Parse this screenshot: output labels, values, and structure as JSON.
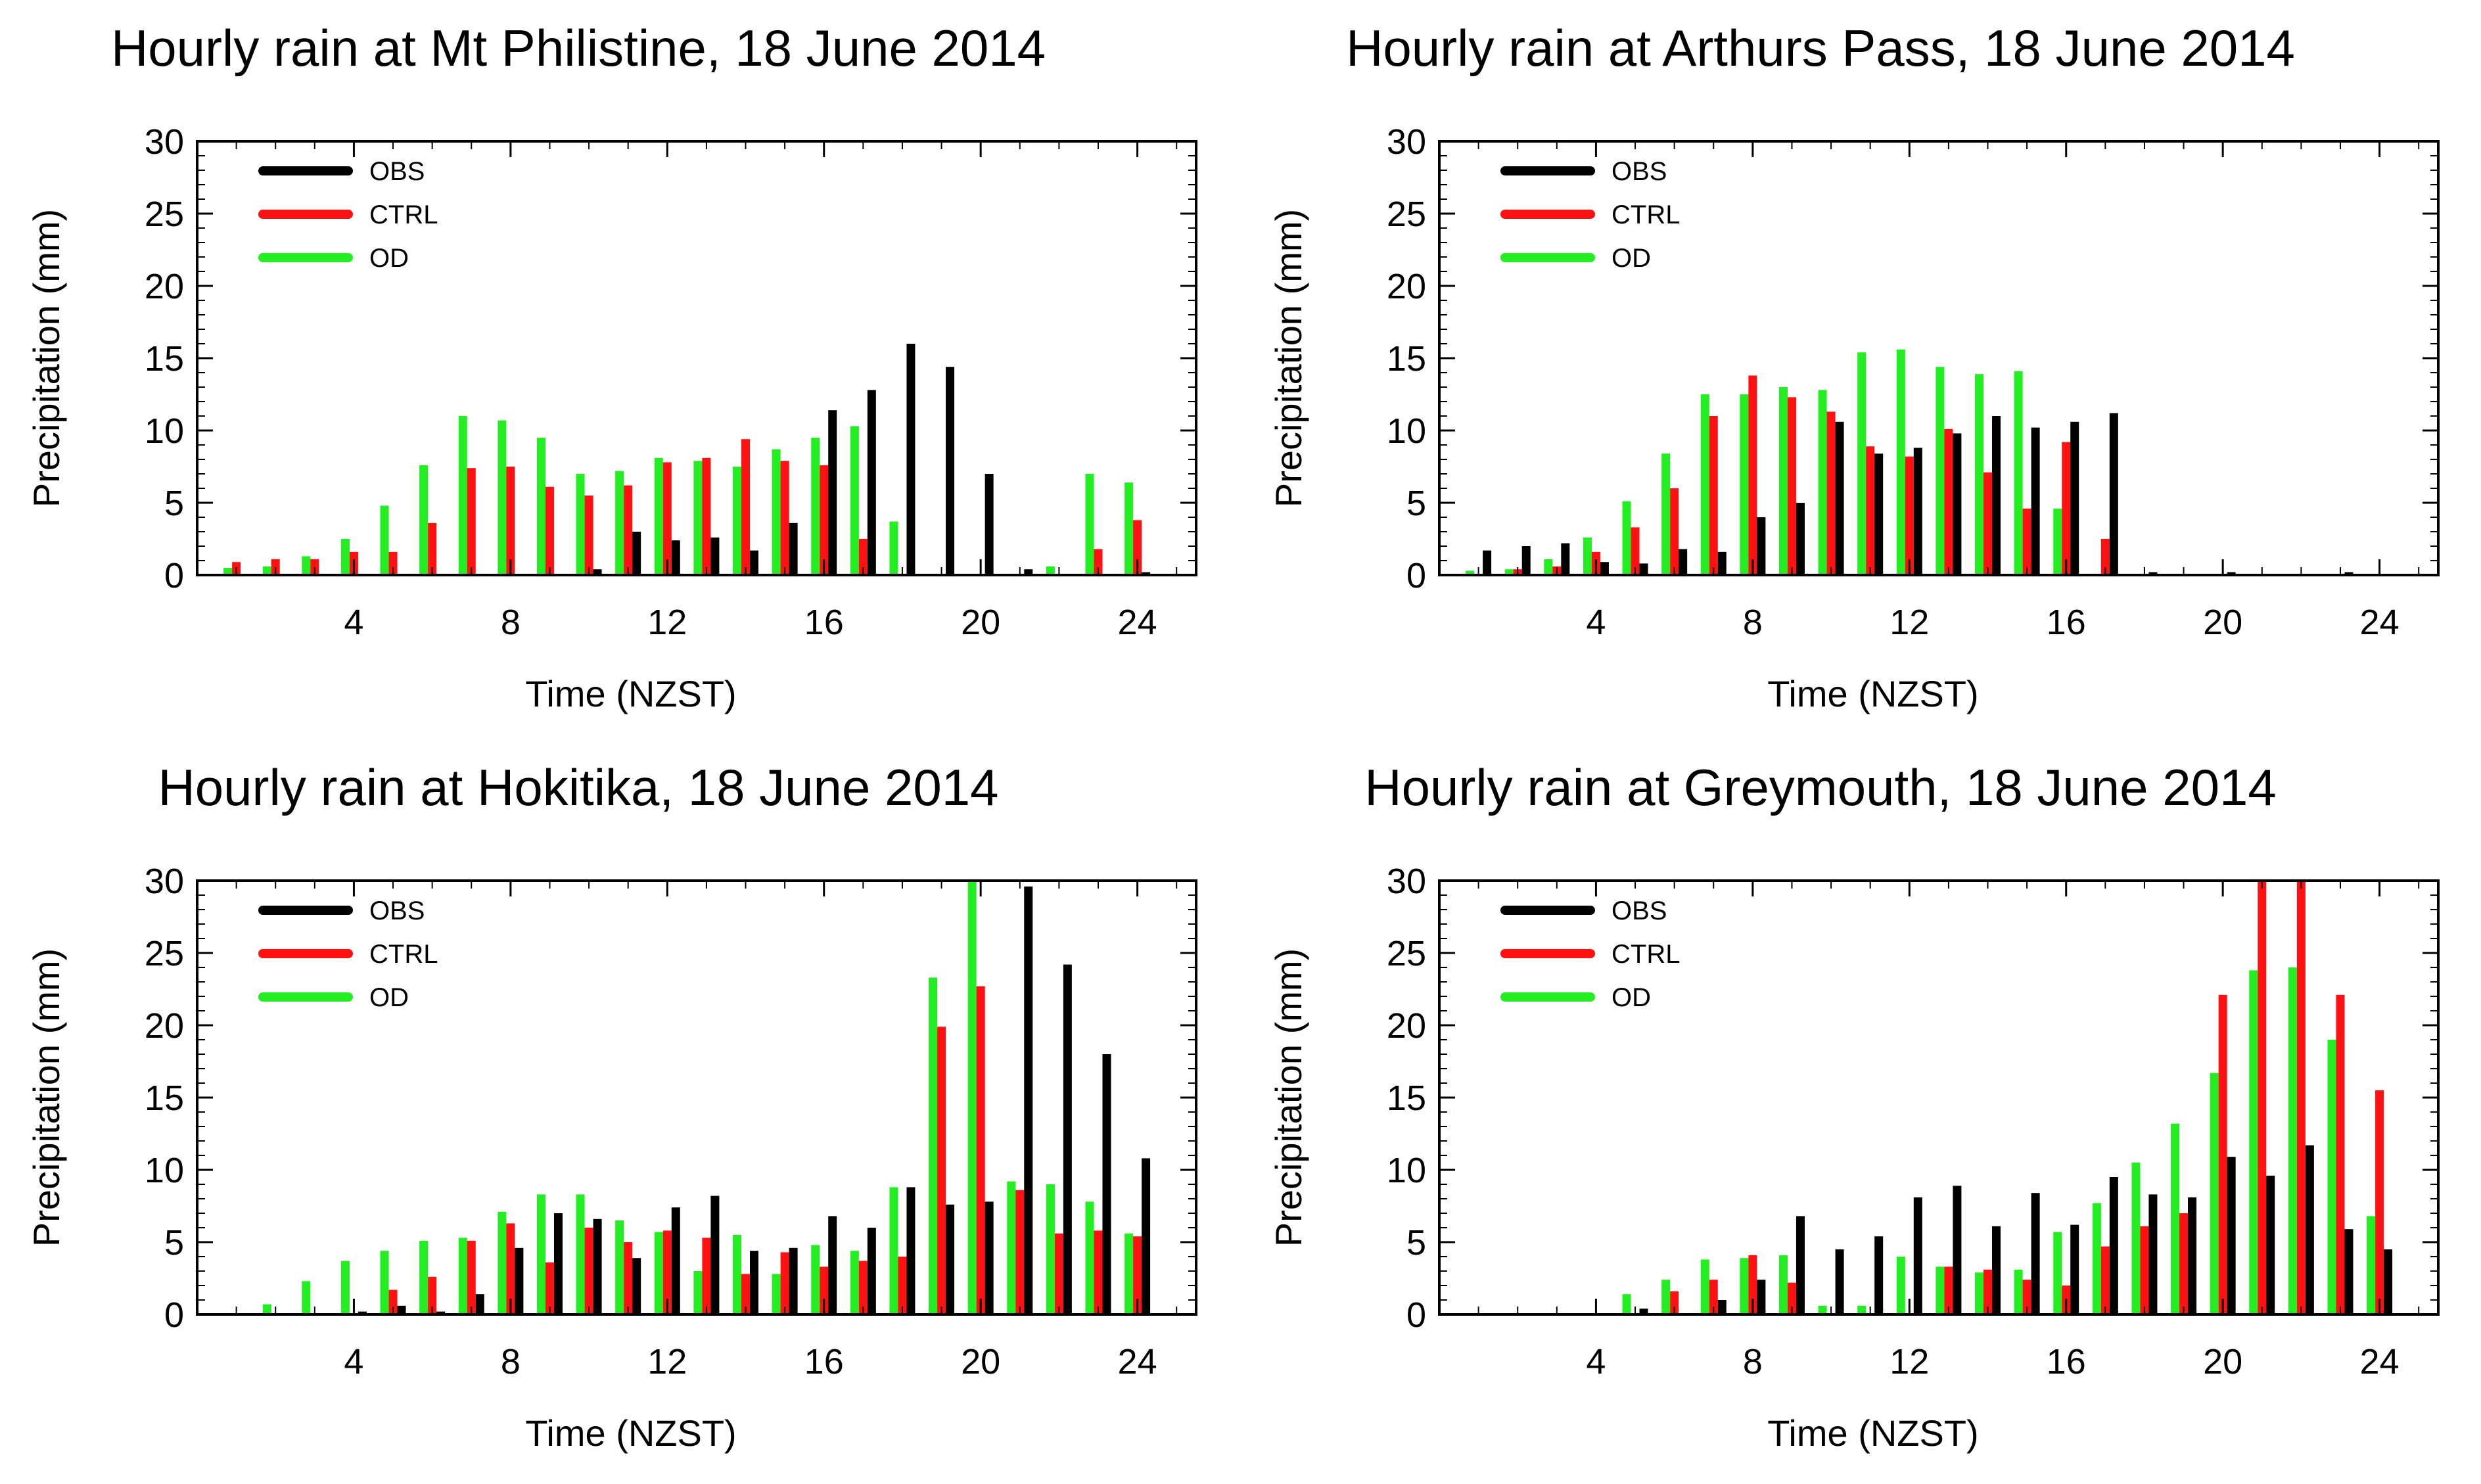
{
  "colors": {
    "OBS": "#000000",
    "CTRL": "#ff1111",
    "OD": "#22ee22"
  },
  "chart_data": [
    {
      "type": "bar",
      "title": "Hourly rain at Mt Philistine, 18 June 2014",
      "xlabel": "Time (NZST)",
      "ylabel": "Precipitation (mm)",
      "xlim": [
        0,
        25.5
      ],
      "ylim": [
        0,
        30
      ],
      "xticks": [
        4,
        8,
        12,
        16,
        20,
        24
      ],
      "yticks": [
        0,
        5,
        10,
        15,
        20,
        25,
        30
      ],
      "legend": [
        "OBS",
        "CTRL",
        "OD"
      ],
      "legend_position": "top-left",
      "x": [
        1,
        2,
        3,
        4,
        5,
        6,
        7,
        8,
        9,
        10,
        11,
        12,
        13,
        14,
        15,
        16,
        17,
        18,
        19,
        20,
        21,
        22,
        23,
        24
      ],
      "series": [
        {
          "name": "OD",
          "values": [
            0.5,
            0.6,
            1.3,
            2.5,
            4.8,
            7.6,
            11.0,
            10.7,
            9.5,
            7.0,
            7.2,
            8.1,
            7.9,
            7.5,
            8.7,
            9.5,
            10.3,
            3.7,
            0,
            0,
            0,
            0.6,
            7.0,
            6.4
          ]
        },
        {
          "name": "CTRL",
          "values": [
            0.9,
            1.1,
            1.1,
            1.6,
            1.6,
            3.6,
            7.4,
            7.5,
            6.1,
            5.5,
            6.2,
            7.8,
            8.1,
            9.4,
            7.9,
            7.6,
            2.5,
            0,
            0,
            0,
            0,
            0,
            1.8,
            3.8
          ]
        },
        {
          "name": "OBS",
          "values": [
            0,
            0,
            0,
            0,
            0,
            0,
            0,
            0,
            0,
            0.4,
            3.0,
            2.4,
            2.6,
            1.7,
            3.6,
            11.4,
            12.8,
            16.0,
            14.4,
            7.0,
            0.4,
            0,
            0,
            0.2
          ]
        }
      ]
    },
    {
      "type": "bar",
      "title": "Hourly rain at Arthurs Pass, 18 June 2014",
      "xlabel": "Time (NZST)",
      "ylabel": "Precipitation (mm)",
      "xlim": [
        0,
        25.5
      ],
      "ylim": [
        0,
        30
      ],
      "xticks": [
        4,
        8,
        12,
        16,
        20,
        24
      ],
      "yticks": [
        0,
        5,
        10,
        15,
        20,
        25,
        30
      ],
      "legend": [
        "OBS",
        "CTRL",
        "OD"
      ],
      "legend_position": "top-left",
      "x": [
        1,
        2,
        3,
        4,
        5,
        6,
        7,
        8,
        9,
        10,
        11,
        12,
        13,
        14,
        15,
        16,
        17,
        18,
        19,
        20,
        21,
        22,
        23,
        24
      ],
      "series": [
        {
          "name": "OD",
          "values": [
            0.3,
            0.4,
            1.1,
            2.6,
            5.1,
            8.4,
            12.5,
            12.5,
            13.0,
            12.8,
            15.4,
            15.6,
            14.4,
            13.9,
            14.1,
            4.6,
            0,
            0,
            0,
            0,
            0,
            0,
            0,
            0
          ]
        },
        {
          "name": "CTRL",
          "values": [
            0,
            0.4,
            0.6,
            1.6,
            3.3,
            6.0,
            11.0,
            13.8,
            12.3,
            11.3,
            8.9,
            8.2,
            10.1,
            7.1,
            4.6,
            9.2,
            2.5,
            0,
            0,
            0,
            0,
            0,
            0,
            0
          ]
        },
        {
          "name": "OBS",
          "values": [
            1.7,
            2.0,
            2.2,
            0.9,
            0.8,
            1.8,
            1.6,
            4.0,
            5.0,
            10.6,
            8.4,
            8.8,
            9.8,
            11.0,
            10.2,
            10.6,
            11.2,
            0.2,
            0,
            0.2,
            0,
            0,
            0.2,
            0
          ]
        }
      ]
    },
    {
      "type": "bar",
      "title": "Hourly rain at Hokitika, 18 June 2014",
      "xlabel": "Time (NZST)",
      "ylabel": "Precipitation (mm)",
      "xlim": [
        0,
        25.5
      ],
      "ylim": [
        0,
        30
      ],
      "xticks": [
        4,
        8,
        12,
        16,
        20,
        24
      ],
      "yticks": [
        0,
        5,
        10,
        15,
        20,
        25,
        30
      ],
      "legend": [
        "OBS",
        "CTRL",
        "OD"
      ],
      "legend_position": "top-left",
      "x": [
        1,
        2,
        3,
        4,
        5,
        6,
        7,
        8,
        9,
        10,
        11,
        12,
        13,
        14,
        15,
        16,
        17,
        18,
        19,
        20,
        21,
        22,
        23,
        24
      ],
      "series": [
        {
          "name": "OD",
          "values": [
            0,
            0.7,
            2.3,
            3.7,
            4.4,
            5.1,
            5.3,
            7.1,
            8.3,
            8.3,
            6.5,
            5.7,
            3.0,
            5.5,
            2.8,
            4.8,
            4.4,
            8.8,
            23.3,
            30.0,
            9.2,
            9.0,
            7.8,
            5.6
          ]
        },
        {
          "name": "CTRL",
          "values": [
            0,
            0,
            0,
            0,
            1.7,
            2.6,
            5.1,
            6.3,
            3.6,
            6.0,
            5.0,
            5.8,
            5.3,
            2.8,
            4.3,
            3.3,
            3.7,
            4.0,
            19.9,
            22.7,
            8.6,
            5.6,
            5.8,
            5.4
          ]
        },
        {
          "name": "OBS",
          "values": [
            0,
            0,
            0,
            0.2,
            0.6,
            0.2,
            1.4,
            4.6,
            7.0,
            6.6,
            3.9,
            7.4,
            8.2,
            4.4,
            4.6,
            6.8,
            6.0,
            8.8,
            7.6,
            7.8,
            29.6,
            24.2,
            18.0,
            10.8
          ]
        }
      ]
    },
    {
      "type": "bar",
      "title": "Hourly rain at Greymouth, 18 June 2014",
      "xlabel": "Time (NZST)",
      "ylabel": "Precipitation (mm)",
      "xlim": [
        0,
        25.5
      ],
      "ylim": [
        0,
        30
      ],
      "xticks": [
        4,
        8,
        12,
        16,
        20,
        24
      ],
      "yticks": [
        0,
        5,
        10,
        15,
        20,
        25,
        30
      ],
      "legend": [
        "OBS",
        "CTRL",
        "OD"
      ],
      "legend_position": "top-left",
      "x": [
        1,
        2,
        3,
        4,
        5,
        6,
        7,
        8,
        9,
        10,
        11,
        12,
        13,
        14,
        15,
        16,
        17,
        18,
        19,
        20,
        21,
        22,
        23,
        24
      ],
      "series": [
        {
          "name": "OD",
          "values": [
            0,
            0,
            0,
            0,
            1.4,
            2.4,
            3.8,
            3.9,
            4.1,
            0.6,
            0.6,
            4.0,
            3.3,
            2.9,
            3.1,
            5.7,
            7.7,
            10.5,
            13.2,
            16.7,
            23.8,
            24.0,
            19.0,
            6.8
          ]
        },
        {
          "name": "CTRL",
          "values": [
            0,
            0,
            0,
            0,
            0,
            1.6,
            2.4,
            4.1,
            2.2,
            0,
            0,
            0,
            3.3,
            3.1,
            2.4,
            2.0,
            4.7,
            6.1,
            7.0,
            22.1,
            30.0,
            30.0,
            22.1,
            15.5
          ]
        },
        {
          "name": "OBS",
          "values": [
            0,
            0,
            0,
            0,
            0.4,
            0,
            1.0,
            2.4,
            6.8,
            4.5,
            5.4,
            8.1,
            8.9,
            6.1,
            8.4,
            6.2,
            9.5,
            8.3,
            8.1,
            10.9,
            9.6,
            11.7,
            5.9,
            4.5
          ]
        }
      ]
    }
  ]
}
